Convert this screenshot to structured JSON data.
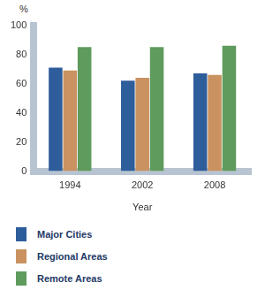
{
  "chart_data": {
    "type": "bar",
    "ylabel": "%",
    "xlabel": "Year",
    "categories": [
      "1994",
      "2002",
      "2008"
    ],
    "series": [
      {
        "name": "Major Cities",
        "color": "#2e5d9b",
        "values": [
          71,
          62,
          67
        ]
      },
      {
        "name": "Regional Areas",
        "color": "#c99260",
        "values": [
          69,
          64,
          66
        ]
      },
      {
        "name": "Remote Areas",
        "color": "#5e9b5c",
        "values": [
          85,
          85,
          86
        ]
      }
    ],
    "ylim": [
      0,
      100
    ],
    "yticks": [
      0,
      20,
      40,
      60,
      80,
      100
    ],
    "grid": false,
    "legend": "bottom"
  }
}
